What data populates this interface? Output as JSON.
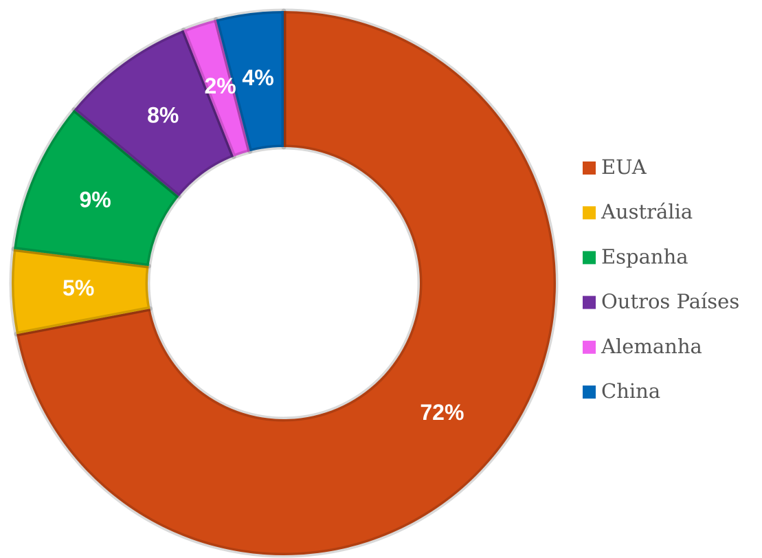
{
  "chart_data": {
    "type": "pie",
    "categories": [
      "EUA",
      "Austrália",
      "Espanha",
      "Outros Países",
      "Alemanha",
      "China"
    ],
    "values": [
      72,
      5,
      9,
      8,
      2,
      4
    ],
    "value_labels": [
      "72%",
      "5%",
      "9%",
      "8%",
      "2%",
      "4%"
    ],
    "colors": [
      "#d04a14",
      "#f5b800",
      "#00a94f",
      "#7030a0",
      "#f060f0",
      "#0068b8"
    ],
    "legend": "right"
  }
}
